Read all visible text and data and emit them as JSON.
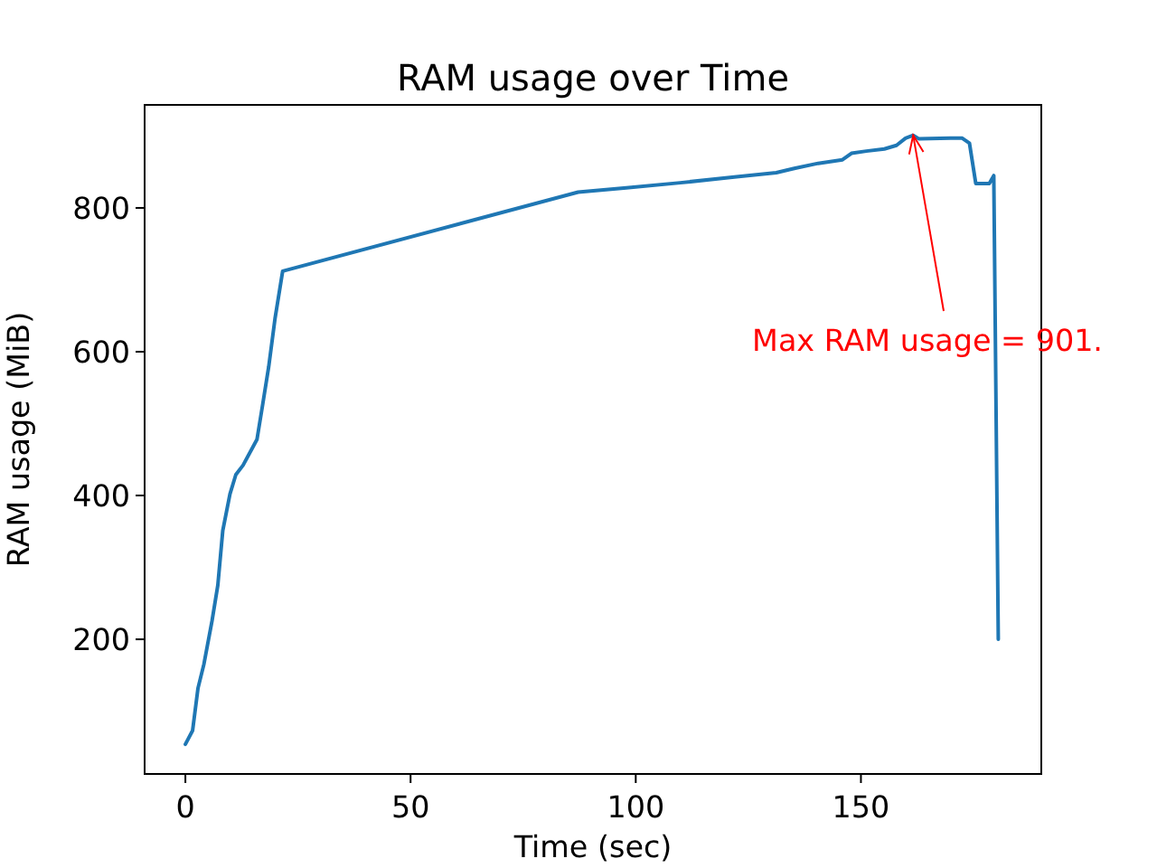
{
  "chart_data": {
    "type": "line",
    "title": "RAM usage over Time",
    "xlabel": "Time (sec)",
    "ylabel": "RAM usage (MiB)",
    "x": [
      0,
      1.6,
      2.8,
      4.1,
      5.9,
      7.2,
      8.3,
      9.9,
      11.2,
      12.8,
      15.9,
      17.2,
      18.5,
      19.9,
      21.6,
      87.2,
      97.9,
      109.9,
      121.9,
      131.2,
      135.2,
      140.5,
      145.9,
      147.9,
      151.2,
      155.2,
      157.9,
      159.9,
      161.6,
      162.9,
      169.9,
      172.5,
      174.1,
      175.5,
      178.5,
      179.5,
      180.5
    ],
    "series": [
      {
        "color": "#1f77b4",
        "values": [
          54,
          73,
          132,
          165,
          225,
          275,
          351,
          402,
          429,
          442,
          478,
          528,
          579,
          646,
          712,
          822,
          828,
          835,
          843,
          849,
          855,
          862,
          867,
          876,
          879,
          882,
          887,
          897,
          901,
          896,
          897,
          897,
          890,
          834,
          834,
          845,
          200
        ]
      }
    ],
    "xlim": [
      -9.05,
      190.05
    ],
    "ylim": [
      12.7,
      943.3
    ],
    "xticks": [
      0,
      50,
      100,
      150
    ],
    "yticks": [
      200,
      400,
      600,
      800
    ],
    "marker": "none",
    "line_style": "solid",
    "grid": false,
    "annotations": [
      {
        "text": "Max RAM usage = 901.",
        "x": 161.6,
        "y": 901
      }
    ]
  }
}
